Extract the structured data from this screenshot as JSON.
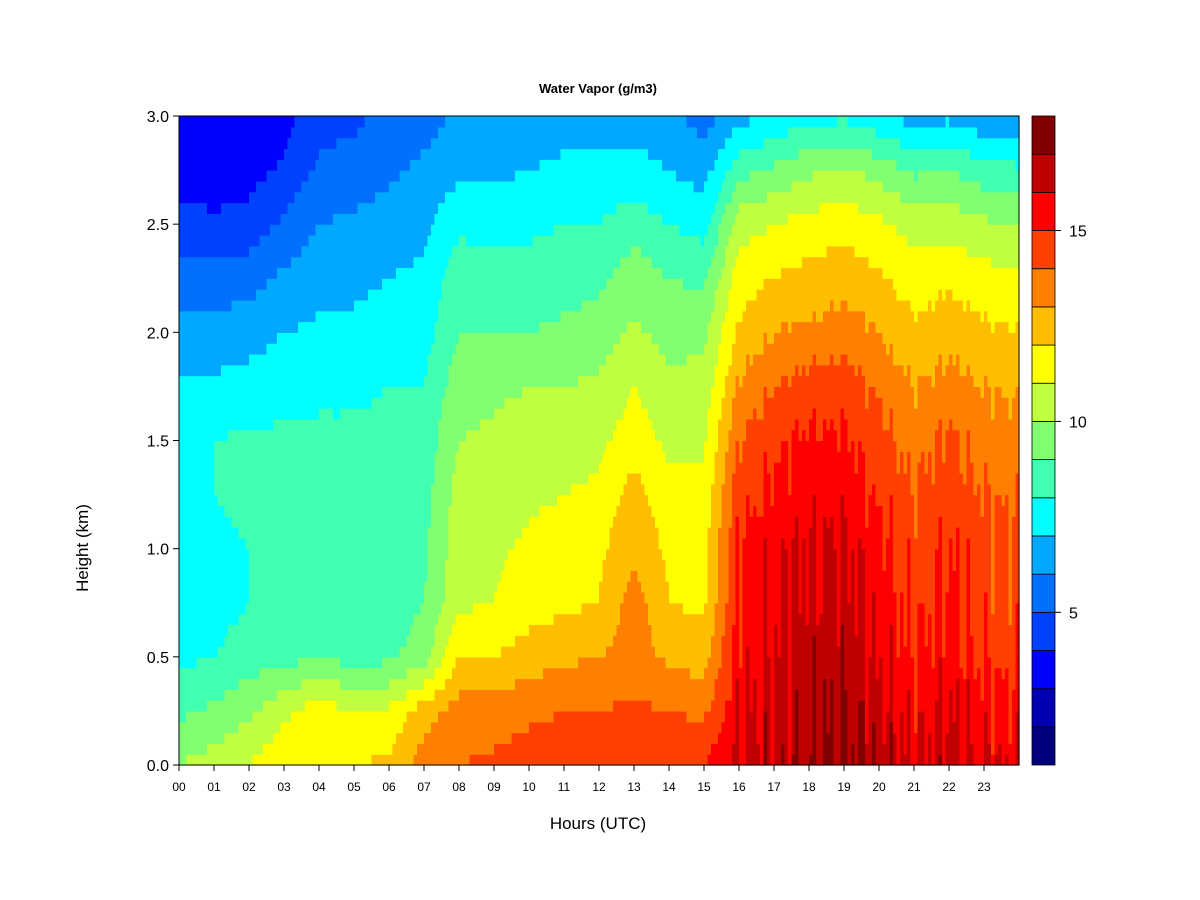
{
  "chart_data": {
    "type": "heatmap",
    "title": "Water Vapor (g/m3)",
    "xlabel": "Hours (UTC)",
    "ylabel": "Height (km)",
    "xlim": [
      0,
      24
    ],
    "ylim": [
      0.0,
      3.0
    ],
    "x_ticks": [
      "00",
      "01",
      "02",
      "03",
      "04",
      "05",
      "06",
      "07",
      "08",
      "09",
      "10",
      "11",
      "12",
      "13",
      "14",
      "15",
      "16",
      "17",
      "18",
      "19",
      "20",
      "21",
      "22",
      "23"
    ],
    "y_ticks": [
      "0.0",
      "0.5",
      "1.0",
      "1.5",
      "2.0",
      "2.5",
      "3.0"
    ],
    "colorbar": {
      "range": [
        1,
        18
      ],
      "levels": [
        1,
        2,
        3,
        4,
        5,
        6,
        7,
        8,
        9,
        10,
        11,
        12,
        13,
        14,
        15,
        16,
        17,
        18
      ],
      "tick_values": [
        5,
        10,
        15
      ],
      "tick_labels": [
        "5",
        "10",
        "15"
      ],
      "colors": [
        "#00007f",
        "#0000b2",
        "#0000ff",
        "#0040ff",
        "#0070ff",
        "#00a8ff",
        "#00ffff",
        "#40ffb0",
        "#80ff70",
        "#bfff40",
        "#ffff00",
        "#ffbf00",
        "#ff8000",
        "#ff4000",
        "#ff0000",
        "#c00000",
        "#800000"
      ]
    },
    "x_hours": [
      0,
      1,
      2,
      3,
      4,
      5,
      6,
      7,
      8,
      9,
      10,
      11,
      12,
      13,
      14,
      15,
      16,
      17,
      18,
      19,
      20,
      21,
      22,
      23,
      24
    ],
    "y_heights_km": [
      0.0,
      0.25,
      0.5,
      0.75,
      1.0,
      1.25,
      1.5,
      1.75,
      2.0,
      2.25,
      2.5,
      2.75,
      3.0
    ],
    "z_values": [
      [
        10.0,
        10.5,
        11.0,
        11.8,
        12.0,
        12.0,
        12.2,
        13.5,
        14.0,
        14.2,
        14.5,
        14.5,
        14.5,
        14.8,
        14.8,
        15.0,
        16.2,
        16.6,
        17.0,
        17.2,
        16.8,
        16.0,
        16.5,
        16.0,
        16.0
      ],
      [
        8.8,
        9.2,
        9.8,
        10.8,
        11.5,
        11.0,
        11.2,
        12.5,
        13.5,
        13.5,
        13.8,
        14.0,
        14.0,
        14.2,
        14.0,
        13.8,
        15.8,
        16.4,
        16.8,
        17.0,
        16.4,
        15.6,
        16.0,
        15.4,
        15.2
      ],
      [
        7.8,
        8.0,
        8.5,
        8.6,
        9.0,
        8.6,
        8.8,
        9.5,
        12.0,
        12.0,
        12.5,
        12.8,
        13.0,
        13.5,
        12.8,
        12.5,
        15.5,
        16.0,
        16.5,
        16.6,
        15.8,
        15.0,
        15.6,
        14.8,
        14.6
      ],
      [
        7.4,
        7.6,
        8.0,
        8.2,
        8.5,
        8.4,
        8.5,
        9.0,
        10.8,
        11.0,
        11.5,
        11.8,
        12.0,
        13.5,
        12.0,
        11.8,
        15.2,
        15.8,
        16.2,
        16.4,
        15.6,
        14.6,
        15.2,
        14.6,
        14.4
      ],
      [
        7.6,
        7.8,
        8.0,
        8.2,
        8.4,
        8.4,
        8.5,
        8.8,
        10.6,
        10.8,
        11.2,
        11.5,
        11.8,
        12.8,
        11.8,
        11.6,
        15.2,
        15.8,
        16.2,
        16.2,
        15.4,
        14.6,
        15.0,
        14.4,
        14.2
      ],
      [
        7.8,
        8.0,
        8.2,
        8.2,
        8.4,
        8.4,
        8.5,
        8.6,
        10.4,
        10.6,
        10.8,
        11.0,
        11.2,
        12.5,
        11.2,
        11.2,
        14.6,
        15.2,
        15.6,
        15.6,
        14.8,
        14.0,
        14.6,
        14.0,
        13.8
      ],
      [
        8.0,
        8.0,
        8.2,
        8.2,
        8.2,
        8.2,
        8.3,
        8.4,
        10.0,
        10.2,
        10.5,
        10.5,
        10.8,
        11.5,
        10.8,
        10.8,
        14.0,
        14.8,
        15.2,
        15.2,
        14.4,
        13.6,
        14.2,
        13.6,
        13.4
      ],
      [
        7.2,
        7.2,
        7.4,
        7.6,
        7.8,
        7.8,
        8.0,
        8.0,
        9.6,
        9.8,
        10.0,
        10.0,
        10.2,
        11.0,
        10.3,
        10.3,
        13.2,
        14.0,
        14.5,
        14.5,
        13.8,
        13.0,
        13.4,
        13.0,
        12.8
      ],
      [
        6.4,
        6.4,
        6.6,
        7.0,
        7.2,
        7.2,
        7.4,
        7.6,
        9.0,
        9.0,
        9.0,
        9.2,
        9.4,
        10.2,
        9.6,
        9.8,
        12.2,
        13.0,
        13.2,
        13.5,
        13.0,
        12.2,
        12.6,
        12.2,
        12.0
      ],
      [
        5.4,
        5.4,
        5.6,
        6.2,
        6.6,
        6.8,
        7.0,
        7.2,
        8.6,
        8.4,
        8.4,
        8.6,
        8.8,
        9.6,
        9.0,
        8.8,
        11.5,
        12.0,
        12.4,
        12.6,
        12.2,
        11.5,
        11.8,
        11.4,
        11.2
      ],
      [
        4.4,
        4.2,
        4.4,
        5.2,
        6.0,
        6.2,
        6.5,
        6.8,
        7.8,
        7.6,
        7.8,
        8.0,
        8.0,
        8.6,
        8.0,
        7.6,
        10.6,
        11.0,
        11.4,
        11.6,
        11.2,
        10.6,
        10.6,
        10.2,
        10.0
      ],
      [
        3.6,
        3.4,
        3.6,
        4.2,
        5.2,
        5.4,
        5.8,
        6.2,
        6.8,
        6.8,
        7.0,
        7.2,
        7.2,
        7.4,
        7.0,
        6.6,
        8.6,
        9.2,
        9.8,
        10.2,
        9.6,
        8.8,
        9.0,
        8.4,
        8.2
      ],
      [
        3.2,
        3.0,
        3.2,
        3.6,
        4.6,
        4.8,
        5.2,
        5.6,
        6.2,
        6.2,
        6.4,
        6.6,
        6.6,
        6.6,
        6.2,
        5.6,
        6.6,
        7.2,
        7.6,
        7.8,
        7.2,
        6.6,
        6.8,
        6.2,
        6.0
      ]
    ]
  }
}
